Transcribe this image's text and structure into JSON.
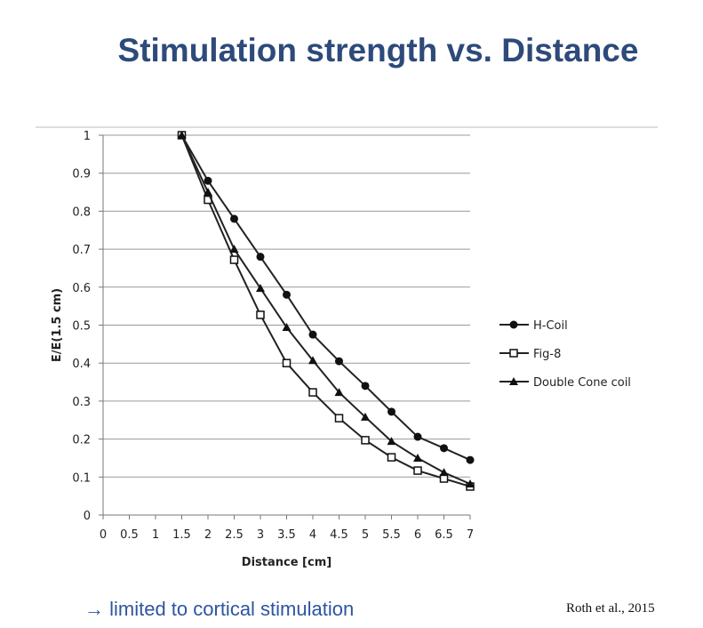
{
  "title": "Stimulation strength vs. Distance",
  "footer": {
    "note": "→ limited to cortical stimulation",
    "citation": "Roth et al., 2015"
  },
  "chart_data": {
    "type": "line",
    "xlabel": "Distance [cm]",
    "ylabel": "E/E(1.5 cm)",
    "xlim": [
      0,
      7
    ],
    "ylim": [
      0,
      1
    ],
    "xticks": [
      "0",
      "0.5",
      "1",
      "1.5",
      "2",
      "2.5",
      "3",
      "3.5",
      "4",
      "4.5",
      "5",
      "5.5",
      "6",
      "6.5",
      "7"
    ],
    "yticks": [
      "0",
      "0.1",
      "0.2",
      "0.3",
      "0.4",
      "0.5",
      "0.6",
      "0.7",
      "0.8",
      "0.9",
      "1"
    ],
    "grid": true,
    "legend": "right",
    "x": [
      1.5,
      2,
      2.5,
      3,
      3.5,
      4,
      4.5,
      5,
      5.5,
      6,
      6.5,
      7
    ],
    "series": [
      {
        "name": "H-Coil",
        "marker": "filled-circle",
        "values": [
          1,
          0.88,
          0.78,
          0.68,
          0.58,
          0.475,
          0.405,
          0.34,
          0.272,
          0.206,
          0.176,
          0.145
        ]
      },
      {
        "name": "Fig-8",
        "marker": "open-square",
        "values": [
          1,
          0.83,
          0.672,
          0.527,
          0.4,
          0.323,
          0.255,
          0.197,
          0.152,
          0.117,
          0.096,
          0.075
        ]
      },
      {
        "name": "Double Cone coil",
        "marker": "filled-triangle",
        "values": [
          1,
          0.85,
          0.7,
          0.597,
          0.494,
          0.407,
          0.323,
          0.258,
          0.194,
          0.15,
          0.112,
          0.082
        ]
      }
    ]
  }
}
